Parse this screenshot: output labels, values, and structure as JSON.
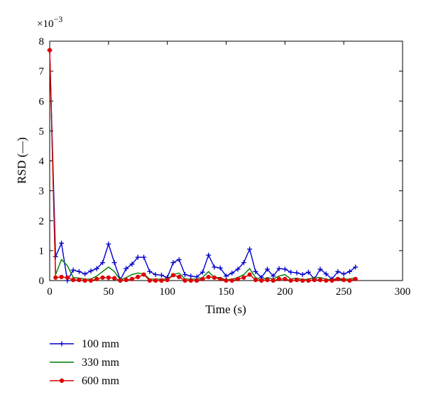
{
  "chart_data": {
    "type": "line",
    "title": "",
    "xlabel": "Time (s)",
    "ylabel": "RSD (—)",
    "y_exponent_label": "×10",
    "y_exponent_power": "−3",
    "xlim": [
      0,
      300
    ],
    "ylim": [
      0,
      8
    ],
    "xticks": [
      0,
      50,
      100,
      150,
      200,
      250,
      300
    ],
    "yticks": [
      0,
      1,
      2,
      3,
      4,
      5,
      6,
      7,
      8
    ],
    "grid": false,
    "legend_position": "below",
    "x": [
      0,
      5,
      10,
      15,
      20,
      25,
      30,
      35,
      40,
      45,
      50,
      55,
      60,
      65,
      70,
      75,
      80,
      85,
      90,
      95,
      100,
      105,
      110,
      115,
      120,
      125,
      130,
      135,
      140,
      145,
      150,
      155,
      160,
      165,
      170,
      175,
      180,
      185,
      190,
      195,
      200,
      205,
      210,
      215,
      220,
      225,
      230,
      235,
      240,
      245,
      250,
      255,
      260
    ],
    "series": [
      {
        "name": "100 mm",
        "color": "#0000cc",
        "marker": "plus",
        "values": [
          7.7,
          0.8,
          1.25,
          0.0,
          0.35,
          0.3,
          0.22,
          0.32,
          0.4,
          0.6,
          1.22,
          0.6,
          0.02,
          0.4,
          0.55,
          0.78,
          0.78,
          0.3,
          0.2,
          0.18,
          0.1,
          0.6,
          0.7,
          0.2,
          0.15,
          0.12,
          0.28,
          0.85,
          0.45,
          0.42,
          0.15,
          0.25,
          0.38,
          0.6,
          1.05,
          0.3,
          0.1,
          0.38,
          0.15,
          0.4,
          0.38,
          0.28,
          0.26,
          0.2,
          0.28,
          0.05,
          0.38,
          0.22,
          0.05,
          0.3,
          0.22,
          0.3,
          0.45
        ]
      },
      {
        "name": "330 mm",
        "color": "#007a00",
        "marker": "none",
        "values": [
          7.7,
          0.2,
          0.7,
          0.5,
          0.1,
          0.08,
          0.05,
          0.05,
          0.15,
          0.3,
          0.45,
          0.3,
          0.02,
          0.1,
          0.2,
          0.25,
          0.22,
          0.05,
          0.05,
          0.05,
          0.05,
          0.2,
          0.25,
          0.05,
          0.05,
          0.05,
          0.1,
          0.3,
          0.1,
          0.1,
          0.02,
          0.05,
          0.1,
          0.2,
          0.4,
          0.1,
          0.02,
          0.1,
          0.05,
          0.15,
          0.2,
          0.05,
          0.08,
          0.03,
          0.05,
          0.1,
          0.1,
          0.05,
          0.02,
          0.08,
          0.05,
          0.05,
          0.1
        ]
      },
      {
        "name": "600 mm",
        "color": "#dd0000",
        "marker": "dot",
        "values": [
          7.7,
          0.1,
          0.12,
          0.1,
          0.02,
          0.02,
          0.0,
          0.0,
          0.05,
          0.1,
          0.1,
          0.08,
          0.0,
          0.02,
          0.05,
          0.12,
          0.2,
          0.0,
          0.0,
          0.0,
          0.02,
          0.18,
          0.12,
          0.0,
          0.0,
          0.0,
          0.05,
          0.12,
          0.1,
          0.05,
          0.0,
          0.0,
          0.05,
          0.1,
          0.2,
          0.02,
          0.0,
          0.02,
          0.0,
          0.05,
          0.05,
          0.0,
          0.02,
          0.0,
          0.0,
          0.02,
          0.02,
          0.0,
          0.0,
          0.05,
          0.02,
          0.0,
          0.05
        ]
      }
    ]
  }
}
